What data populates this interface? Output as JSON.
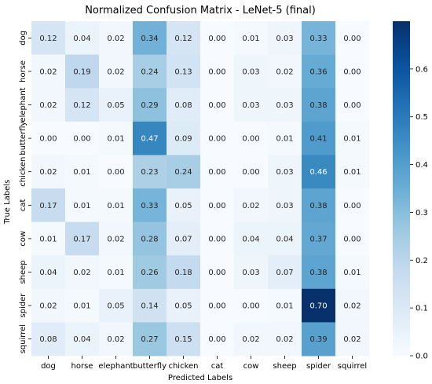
{
  "chart_data": {
    "type": "heatmap",
    "title": "Normalized Confusion Matrix - LeNet-5 (final)",
    "xlabel": "Predicted Labels",
    "ylabel": "True Labels",
    "x_categories": [
      "dog",
      "horse",
      "elephant",
      "butterfly",
      "chicken",
      "cat",
      "cow",
      "sheep",
      "spider",
      "squirrel"
    ],
    "y_categories": [
      "dog",
      "horse",
      "elephant",
      "butterfly",
      "chicken",
      "cat",
      "cow",
      "sheep",
      "spider",
      "squirrel"
    ],
    "values": [
      [
        0.12,
        0.04,
        0.02,
        0.34,
        0.12,
        0.0,
        0.01,
        0.03,
        0.33,
        0.0
      ],
      [
        0.02,
        0.19,
        0.02,
        0.24,
        0.13,
        0.0,
        0.03,
        0.02,
        0.36,
        0.0
      ],
      [
        0.02,
        0.12,
        0.05,
        0.29,
        0.08,
        0.0,
        0.03,
        0.03,
        0.38,
        0.0
      ],
      [
        0.0,
        0.0,
        0.01,
        0.47,
        0.09,
        0.0,
        0.0,
        0.01,
        0.41,
        0.01
      ],
      [
        0.02,
        0.01,
        0.0,
        0.23,
        0.24,
        0.0,
        0.0,
        0.03,
        0.46,
        0.01
      ],
      [
        0.17,
        0.01,
        0.01,
        0.33,
        0.05,
        0.0,
        0.02,
        0.03,
        0.38,
        0.0
      ],
      [
        0.01,
        0.17,
        0.02,
        0.28,
        0.07,
        0.0,
        0.04,
        0.04,
        0.37,
        0.0
      ],
      [
        0.04,
        0.02,
        0.01,
        0.26,
        0.18,
        0.0,
        0.03,
        0.07,
        0.38,
        0.01
      ],
      [
        0.02,
        0.01,
        0.05,
        0.14,
        0.05,
        0.0,
        0.0,
        0.01,
        0.7,
        0.02
      ],
      [
        0.08,
        0.04,
        0.02,
        0.27,
        0.15,
        0.0,
        0.02,
        0.02,
        0.39,
        0.02
      ]
    ],
    "colormap": "Blues",
    "colorbar": {
      "min": 0.0,
      "max": 0.7,
      "ticks": [
        "0.0",
        "0.1",
        "0.2",
        "0.3",
        "0.4",
        "0.5",
        "0.6"
      ]
    },
    "colors": {
      "low": "#f7fbff",
      "high": "#08306b"
    }
  }
}
